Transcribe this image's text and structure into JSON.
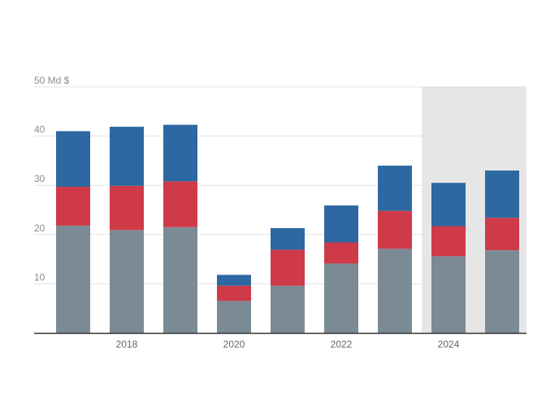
{
  "chart_data": {
    "type": "bar",
    "stacked": true,
    "x": [
      2017,
      2018,
      2019,
      2020,
      2021,
      2022,
      2023,
      2024,
      2025
    ],
    "x_tick_labels": [
      "2018",
      "2020",
      "2022",
      "2024"
    ],
    "x_tick_values": [
      2018,
      2020,
      2022,
      2024
    ],
    "y_tick_labels": [
      "50 Md $",
      "40",
      "30",
      "20",
      "10"
    ],
    "y_tick_values": [
      50,
      40,
      30,
      20,
      10
    ],
    "ylim": [
      0,
      50
    ],
    "grid": true,
    "highlight_from": 2024,
    "series": [
      {
        "color": "#7b8b96",
        "values": [
          21.8,
          20.9,
          21.5,
          6.5,
          9.6,
          14.1,
          17.1,
          15.6,
          16.8
        ]
      },
      {
        "color": "#cf3a48",
        "values": [
          7.9,
          9.0,
          9.3,
          3.1,
          7.3,
          4.3,
          7.7,
          6.1,
          6.6
        ]
      },
      {
        "color": "#2d68a2",
        "values": [
          11.3,
          12.0,
          11.5,
          2.2,
          4.4,
          7.5,
          9.2,
          8.8,
          9.6
        ]
      }
    ],
    "colors": {
      "highlight_band": "#e6e6e6",
      "grid": "#e3e3e3",
      "axis": "#333333"
    }
  }
}
